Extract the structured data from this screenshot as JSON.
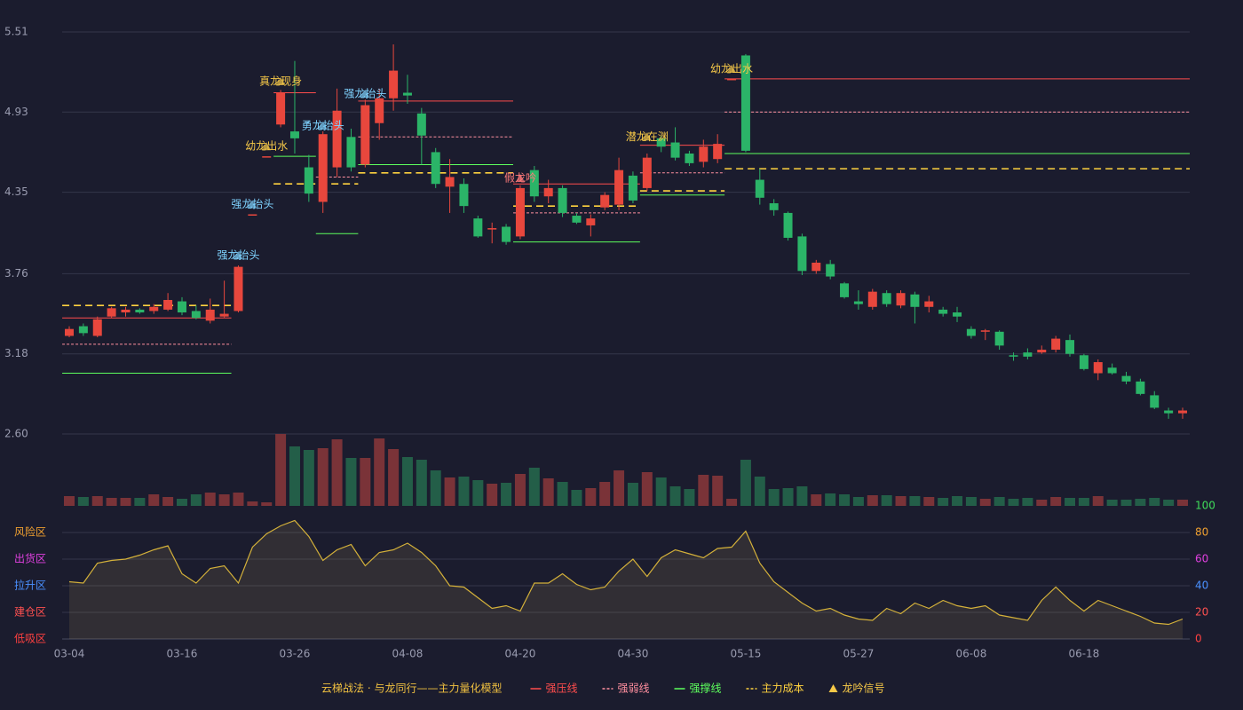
{
  "chart_data": [
    {
      "type": "candlestick",
      "categories": [
        "03-04",
        null,
        null,
        null,
        null,
        null,
        null,
        null,
        "03-16",
        null,
        null,
        null,
        null,
        null,
        null,
        null,
        "03-26",
        null,
        null,
        null,
        null,
        null,
        null,
        null,
        "04-08",
        null,
        null,
        null,
        null,
        null,
        null,
        null,
        "04-20",
        null,
        null,
        null,
        null,
        null,
        null,
        null,
        "04-30",
        null,
        null,
        null,
        null,
        null,
        null,
        null,
        "05-15",
        null,
        null,
        null,
        null,
        null,
        null,
        null,
        "05-27",
        null,
        null,
        null,
        null,
        null,
        null,
        null,
        "06-08",
        null,
        null,
        null,
        null,
        null,
        null,
        null,
        "06-18",
        null,
        null,
        null,
        null,
        null,
        null,
        null
      ],
      "open": [
        3.31,
        3.38,
        3.31,
        3.45,
        3.48,
        3.5,
        3.49,
        3.5,
        3.56,
        3.49,
        3.42,
        3.45,
        3.49,
        4.19,
        4.61,
        4.84,
        4.79,
        4.53,
        4.28,
        4.53,
        4.75,
        4.55,
        4.85,
        5.03,
        5.07,
        4.92,
        4.64,
        4.39,
        4.41,
        4.16,
        4.08,
        4.1,
        4.03,
        4.51,
        4.32,
        4.38,
        4.18,
        4.11,
        4.24,
        4.26,
        4.47,
        4.38,
        4.74,
        4.71,
        4.63,
        4.57,
        4.59,
        5.17,
        5.34,
        4.44,
        4.27,
        4.2,
        4.03,
        3.78,
        3.83,
        3.69,
        3.56,
        3.52,
        3.62,
        3.53,
        3.61,
        3.52,
        3.5,
        3.48,
        3.36,
        3.34,
        3.34,
        3.17,
        3.19,
        3.19,
        3.21,
        3.28,
        3.17,
        3.04,
        3.08,
        3.02,
        2.98,
        2.88,
        2.77,
        2.75
      ],
      "high": [
        3.38,
        3.4,
        3.45,
        3.52,
        3.52,
        3.51,
        3.54,
        3.62,
        3.59,
        3.53,
        3.58,
        3.71,
        3.82,
        4.19,
        4.61,
        5.09,
        5.3,
        4.62,
        4.79,
        5.1,
        4.81,
        5.02,
        5.1,
        5.42,
        5.2,
        4.96,
        4.67,
        4.59,
        4.45,
        4.18,
        4.13,
        4.12,
        4.4,
        4.54,
        4.44,
        4.4,
        4.2,
        4.19,
        4.35,
        4.6,
        4.5,
        4.63,
        4.76,
        4.82,
        4.65,
        4.73,
        4.77,
        5.17,
        5.35,
        4.52,
        4.3,
        4.21,
        4.05,
        3.86,
        3.86,
        3.7,
        3.64,
        3.65,
        3.64,
        3.64,
        3.63,
        3.6,
        3.52,
        3.52,
        3.38,
        3.36,
        3.35,
        3.19,
        3.22,
        3.24,
        3.31,
        3.32,
        3.18,
        3.14,
        3.11,
        3.05,
        3.0,
        2.91,
        2.79,
        2.79
      ],
      "low": [
        3.3,
        3.31,
        3.3,
        3.44,
        3.45,
        3.47,
        3.47,
        3.49,
        3.46,
        3.43,
        3.4,
        3.44,
        3.48,
        4.19,
        4.61,
        4.82,
        4.63,
        4.28,
        4.2,
        4.46,
        4.5,
        4.53,
        4.73,
        4.94,
        4.99,
        4.55,
        4.38,
        4.2,
        4.2,
        4.02,
        3.98,
        3.97,
        4.01,
        4.28,
        4.27,
        4.17,
        4.12,
        4.03,
        4.22,
        4.22,
        4.27,
        4.36,
        4.64,
        4.58,
        4.54,
        4.53,
        4.56,
        5.17,
        4.64,
        4.26,
        4.18,
        4.0,
        3.75,
        3.76,
        3.72,
        3.58,
        3.5,
        3.5,
        3.52,
        3.51,
        3.4,
        3.48,
        3.45,
        3.41,
        3.29,
        3.28,
        3.21,
        3.13,
        3.14,
        3.18,
        3.19,
        3.16,
        3.06,
        2.99,
        3.03,
        2.96,
        2.88,
        2.78,
        2.71,
        2.71
      ],
      "close": [
        3.36,
        3.33,
        3.43,
        3.51,
        3.5,
        3.48,
        3.52,
        3.57,
        3.48,
        3.44,
        3.5,
        3.47,
        3.81,
        4.19,
        4.61,
        5.07,
        4.74,
        4.34,
        4.77,
        4.94,
        4.53,
        4.98,
        5.03,
        5.23,
        5.05,
        4.76,
        4.41,
        4.46,
        4.25,
        4.03,
        4.09,
        3.99,
        4.38,
        4.32,
        4.38,
        4.2,
        4.13,
        4.16,
        4.33,
        4.51,
        4.29,
        4.6,
        4.68,
        4.6,
        4.56,
        4.68,
        4.7,
        5.17,
        4.65,
        4.31,
        4.22,
        4.02,
        3.78,
        3.84,
        3.74,
        3.59,
        3.54,
        3.63,
        3.54,
        3.62,
        3.52,
        3.56,
        3.47,
        3.45,
        3.31,
        3.35,
        3.24,
        3.16,
        3.16,
        3.21,
        3.29,
        3.18,
        3.07,
        3.12,
        3.04,
        2.98,
        2.89,
        2.79,
        2.75,
        2.77
      ],
      "up_color": "#e8473d",
      "down_color": "#2bb468",
      "ylim": [
        2.6,
        5.51
      ],
      "yticks": [
        {
          "value": 2.6,
          "label": "2.60"
        },
        3.18,
        3.76,
        4.35,
        4.93,
        5.51
      ],
      "grid": true,
      "levels": [
        {
          "name": "强压线",
          "color": "#ff4d4d",
          "dashed": false,
          "segments": [
            {
              "start": 0,
              "end": 11,
              "value": 3.44
            },
            {
              "start": 15,
              "end": 17,
              "value": 5.07
            },
            {
              "start": 21,
              "end": 31,
              "value": 5.01
            },
            {
              "start": 32,
              "end": 40,
              "value": 4.41
            },
            {
              "start": 41,
              "end": 46,
              "value": 4.69
            },
            {
              "start": 47,
              "end": 79,
              "value": 5.17
            }
          ]
        },
        {
          "name": "强弱线",
          "color": "#ff8f9f",
          "dashed": true,
          "segments": [
            {
              "start": 0,
              "end": 11,
              "value": 3.25
            },
            {
              "start": 18,
              "end": 20,
              "value": 4.46
            },
            {
              "start": 21,
              "end": 31,
              "value": 4.75
            },
            {
              "start": 32,
              "end": 40,
              "value": 4.2
            },
            {
              "start": 41,
              "end": 46,
              "value": 4.49
            },
            {
              "start": 47,
              "end": 79,
              "value": 4.93
            }
          ]
        },
        {
          "name": "强撑线",
          "color": "#5dff5d",
          "dashed": false,
          "segments": [
            {
              "start": 0,
              "end": 11,
              "value": 3.04
            },
            {
              "start": 15,
              "end": 17,
              "value": 4.61
            },
            {
              "start": 18,
              "end": 20,
              "value": 4.05
            },
            {
              "start": 21,
              "end": 31,
              "value": 4.55
            },
            {
              "start": 32,
              "end": 40,
              "value": 3.99
            },
            {
              "start": 41,
              "end": 46,
              "value": 4.33
            },
            {
              "start": 47,
              "end": 79,
              "value": 4.63
            }
          ]
        },
        {
          "name": "主力成本",
          "color": "#ffd23f",
          "dashed": true,
          "segments": [
            {
              "start": 0,
              "end": 11,
              "value": 3.53
            },
            {
              "start": 15,
              "end": 20,
              "value": 4.41
            },
            {
              "start": 21,
              "end": 31,
              "value": 4.49
            },
            {
              "start": 32,
              "end": 40,
              "value": 4.25
            },
            {
              "start": 41,
              "end": 46,
              "value": 4.36
            },
            {
              "start": 47,
              "end": 79,
              "value": 4.52
            }
          ]
        }
      ],
      "signals": {
        "name": "龙吟信号",
        "color": "#f7c948",
        "items": [
          {
            "text": "强龙抬头",
            "x": 12,
            "y": 3.89,
            "color": "#7fd3ff"
          },
          {
            "text": "强龙抬头",
            "x": 13,
            "y": 4.26,
            "color": "#7fd3ff"
          },
          {
            "text": "幼龙出水",
            "x": 14,
            "y": 4.68,
            "color": "#f7c948"
          },
          {
            "text": "真龙现身",
            "x": 15,
            "y": 5.15,
            "color": "#f7c948"
          },
          {
            "text": "勇龙抬头",
            "x": 18,
            "y": 4.83,
            "color": "#7fd3ff"
          },
          {
            "text": "强龙抬头",
            "x": 21,
            "y": 5.06,
            "color": "#7fd3ff"
          },
          {
            "text": "假龙吟",
            "x": 32,
            "y": 4.45,
            "color": "#ff7a7a"
          },
          {
            "text": "潜龙在渊",
            "x": 41,
            "y": 4.75,
            "color": "#f7c948"
          },
          {
            "text": "幼龙出水",
            "x": 47,
            "y": 5.24,
            "color": "#f7c948"
          }
        ]
      }
    },
    {
      "type": "bar",
      "values": [
        11,
        10,
        11,
        9,
        9,
        9,
        13,
        10,
        8,
        13,
        15,
        13,
        15,
        5,
        4,
        81,
        67,
        63,
        65,
        75,
        54,
        54,
        76,
        64,
        55,
        52,
        40,
        32,
        33,
        29,
        25,
        26,
        36,
        43,
        31,
        27,
        18,
        20,
        27,
        40,
        26,
        38,
        32,
        22,
        19,
        35,
        34,
        8,
        52,
        33,
        19,
        20,
        22,
        13,
        14,
        13,
        10,
        12,
        12,
        11,
        11,
        10,
        9,
        11,
        10,
        8,
        10,
        8,
        9,
        7,
        10,
        9,
        9,
        11,
        7,
        7,
        8,
        9,
        7,
        7
      ],
      "up_color": "#7a3338",
      "down_color": "#235e48"
    },
    {
      "type": "line",
      "values": [
        43,
        42,
        57,
        59,
        60,
        63,
        67,
        70,
        49,
        42,
        53,
        55,
        42,
        69,
        79,
        85,
        89,
        77,
        59,
        67,
        71,
        55,
        65,
        67,
        72,
        65,
        55,
        40,
        39,
        31,
        23,
        25,
        21,
        42,
        42,
        49,
        41,
        37,
        39,
        51,
        60,
        47,
        61,
        67,
        64,
        61,
        68,
        69,
        81,
        57,
        43,
        35,
        27,
        21,
        23,
        18,
        15,
        14,
        23,
        19,
        27,
        23,
        29,
        25,
        23,
        25,
        18,
        16,
        14,
        29,
        39,
        29,
        21,
        29,
        25,
        21,
        17,
        12,
        11,
        15
      ],
      "color": "#d4b13a",
      "ylim": [
        0,
        100
      ],
      "yticks": [
        0,
        20,
        40,
        60,
        80,
        100
      ],
      "ytick_colors": [
        "#ff4040",
        "#ff5050",
        "#4a90ff",
        "#e040e0",
        "#f0a030",
        "#3fdc5a"
      ],
      "zones": [
        {
          "label": "风险区",
          "value": 80,
          "color": "#f0a030"
        },
        {
          "label": "出货区",
          "value": 60,
          "color": "#e040e0"
        },
        {
          "label": "拉升区",
          "value": 40,
          "color": "#4a90ff"
        },
        {
          "label": "建仓区",
          "value": 20,
          "color": "#ff5050"
        },
        {
          "label": "低吸区",
          "value": 0,
          "color": "#ff4040"
        }
      ]
    }
  ],
  "legend": {
    "title": "云梯战法 · 与龙同行——主力量化模型",
    "color": "#f0c040"
  }
}
